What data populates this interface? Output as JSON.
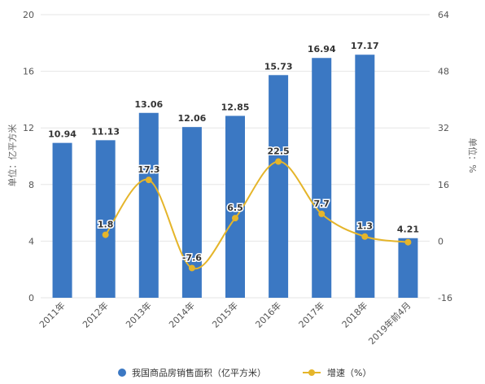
{
  "chart_data": {
    "type": "bar",
    "categories": [
      "2011年",
      "2012年",
      "2013年",
      "2014年",
      "2015年",
      "2016年",
      "2017年",
      "2018年",
      "2019年前4月"
    ],
    "series": [
      {
        "name": "我国商品房销售面积（亿平方米）",
        "type": "bar",
        "axis": "left",
        "values": [
          10.94,
          11.13,
          13.06,
          12.06,
          12.85,
          15.73,
          16.94,
          17.17,
          4.21
        ],
        "labels": [
          "10.94",
          "11.13",
          "13.06",
          "12.06",
          "12.85",
          "15.73",
          "16.94",
          "17.17",
          "4.21"
        ],
        "color": "#3b78c3"
      },
      {
        "name": "增速（%）",
        "type": "line",
        "axis": "right",
        "values": [
          null,
          1.8,
          17.3,
          -7.6,
          6.5,
          22.5,
          7.7,
          1.3,
          -0.3
        ],
        "labels": [
          "",
          "1.8",
          "17.3",
          "-7.6",
          "6.5",
          "22.5",
          "7.7",
          "1.3",
          ""
        ],
        "color": "#e5b52a"
      }
    ],
    "ylabel": "单位：亿平方米",
    "y2label": "单位：%",
    "ylim": [
      0,
      20
    ],
    "y2lim": [
      -16,
      64
    ],
    "yticks": [
      "0",
      "4",
      "8",
      "12",
      "16",
      "20"
    ],
    "y2ticks": [
      "-16",
      "0",
      "16",
      "32",
      "48",
      "64"
    ],
    "grid": true,
    "legend": "bottom",
    "legend_entries": [
      "我国商品房销售面积（亿平方米）",
      "增速（%）"
    ]
  }
}
